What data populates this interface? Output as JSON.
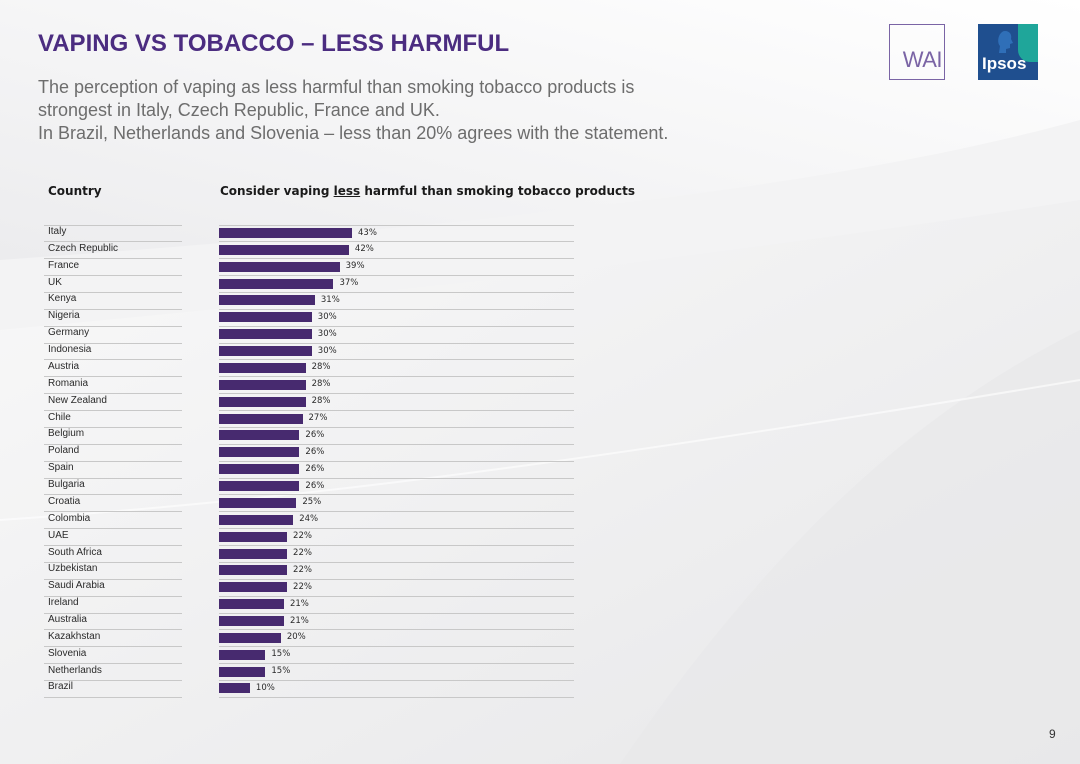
{
  "header": {
    "title": "VAPING VS TOBACCO – LESS HARMFUL",
    "subtitle_lines": [
      "The perception of vaping as less harmful than smoking tobacco products is",
      "strongest in Italy, Czech Republic, France and UK.",
      "In Brazil, Netherlands and Slovenia – less than 20% agrees with the statement."
    ]
  },
  "logos": {
    "wai": "WAI",
    "ipsos": "Ipsos"
  },
  "table": {
    "col_country": "Country",
    "col_measure_pre": "Consider vaping ",
    "col_measure_underlined": "less",
    "col_measure_post": " harmful than smoking tobacco products"
  },
  "chart_data": {
    "type": "bar",
    "orientation": "horizontal",
    "categories": [
      "Italy",
      "Czech Republic",
      "France",
      "UK",
      "Kenya",
      "Nigeria",
      "Germany",
      "Indonesia",
      "Austria",
      "Romania",
      "New Zealand",
      "Chile",
      "Belgium",
      "Poland",
      "Spain",
      "Bulgaria",
      "Croatia",
      "Colombia",
      "UAE",
      "South Africa",
      "Uzbekistan",
      "Saudi Arabia",
      "Ireland",
      "Australia",
      "Kazakhstan",
      "Slovenia",
      "Netherlands",
      "Brazil"
    ],
    "values": [
      43,
      42,
      39,
      37,
      31,
      30,
      30,
      30,
      28,
      28,
      28,
      27,
      26,
      26,
      26,
      26,
      25,
      24,
      22,
      22,
      22,
      22,
      21,
      21,
      20,
      15,
      15,
      10
    ],
    "value_labels": [
      "43%",
      "42%",
      "39%",
      "37%",
      "31%",
      "30%",
      "30%",
      "30%",
      "28%",
      "28%",
      "28%",
      "27%",
      "26%",
      "26%",
      "26%",
      "26%",
      "25%",
      "24%",
      "22%",
      "22%",
      "22%",
      "22%",
      "21%",
      "21%",
      "20%",
      "15%",
      "15%",
      "10%"
    ],
    "unit": "%",
    "bar_color": "#472a6f",
    "grid": false
  },
  "colors": {
    "title": "#4b2c80",
    "subtitle": "#6d6d6d",
    "bar": "#472a6f",
    "ipsos_blue": "#1f4f8f",
    "ipsos_teal": "#1fa69a"
  },
  "footer": {
    "page_number": "9"
  }
}
